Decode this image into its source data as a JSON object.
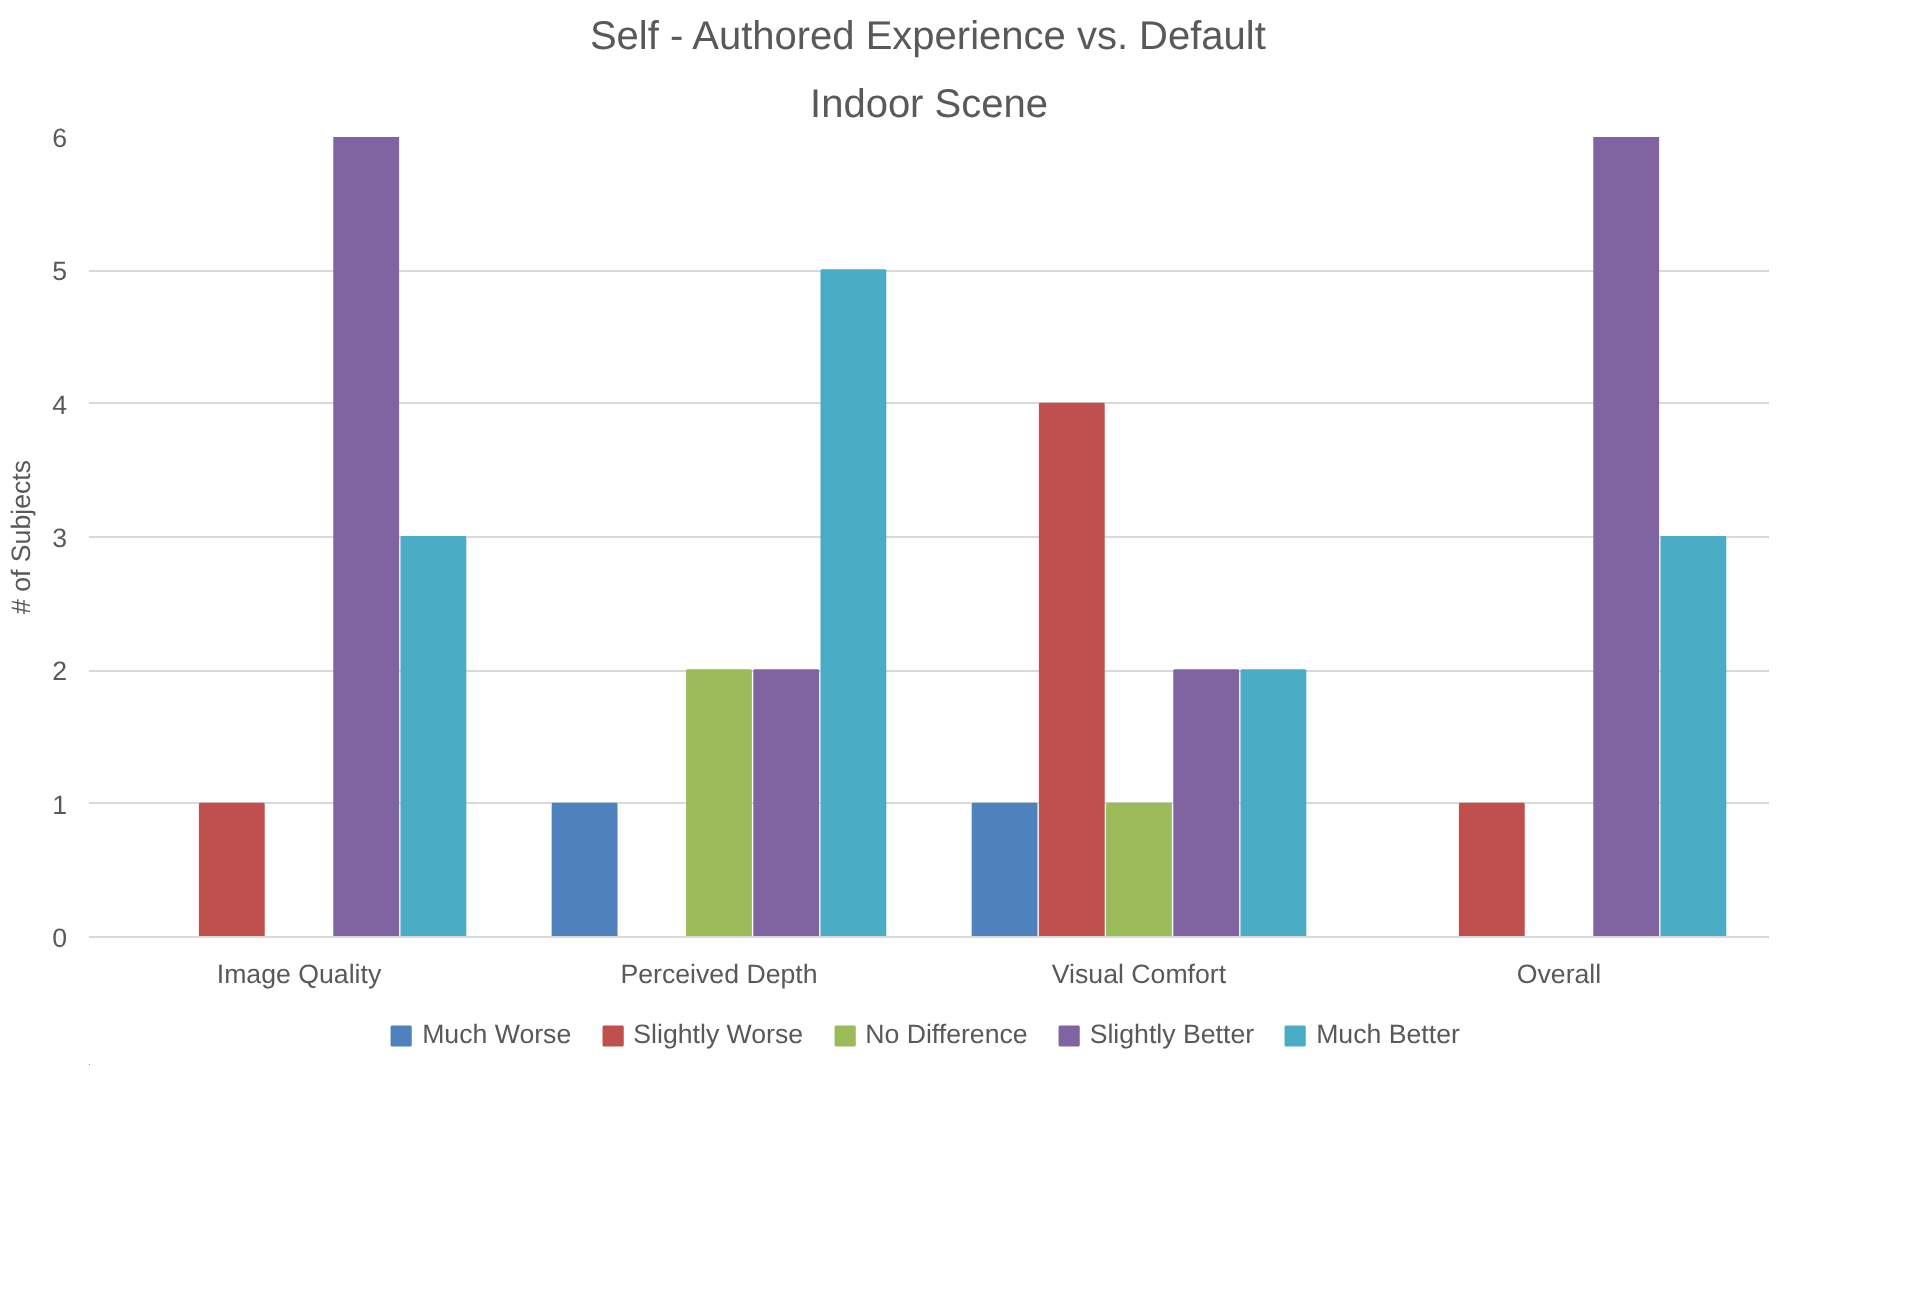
{
  "chart_data": {
    "type": "bar",
    "title": "Self - Authored Experience vs. Default",
    "subtitle": "Indoor Scene",
    "ylabel": "# of Subjects",
    "categories": [
      "Image Quality",
      "Perceived Depth",
      "Visual Comfort",
      "Overall"
    ],
    "series": [
      {
        "name": "Much Worse",
        "color": "#4f81bd",
        "values": [
          0,
          1,
          1,
          0
        ]
      },
      {
        "name": "Slightly Worse",
        "color": "#c0504d",
        "values": [
          1,
          0,
          4,
          1
        ]
      },
      {
        "name": "No Difference",
        "color": "#9bbb59",
        "values": [
          0,
          2,
          1,
          0
        ]
      },
      {
        "name": "Slightly Better",
        "color": "#8064a2",
        "values": [
          6,
          2,
          2,
          6
        ]
      },
      {
        "name": "Much Better",
        "color": "#4bacc6",
        "values": [
          3,
          5,
          2,
          3
        ]
      }
    ],
    "ylim": [
      0,
      6
    ],
    "yticks": [
      0,
      1,
      2,
      3,
      4,
      5,
      6
    ],
    "grid": "y",
    "legend": "bottom"
  }
}
